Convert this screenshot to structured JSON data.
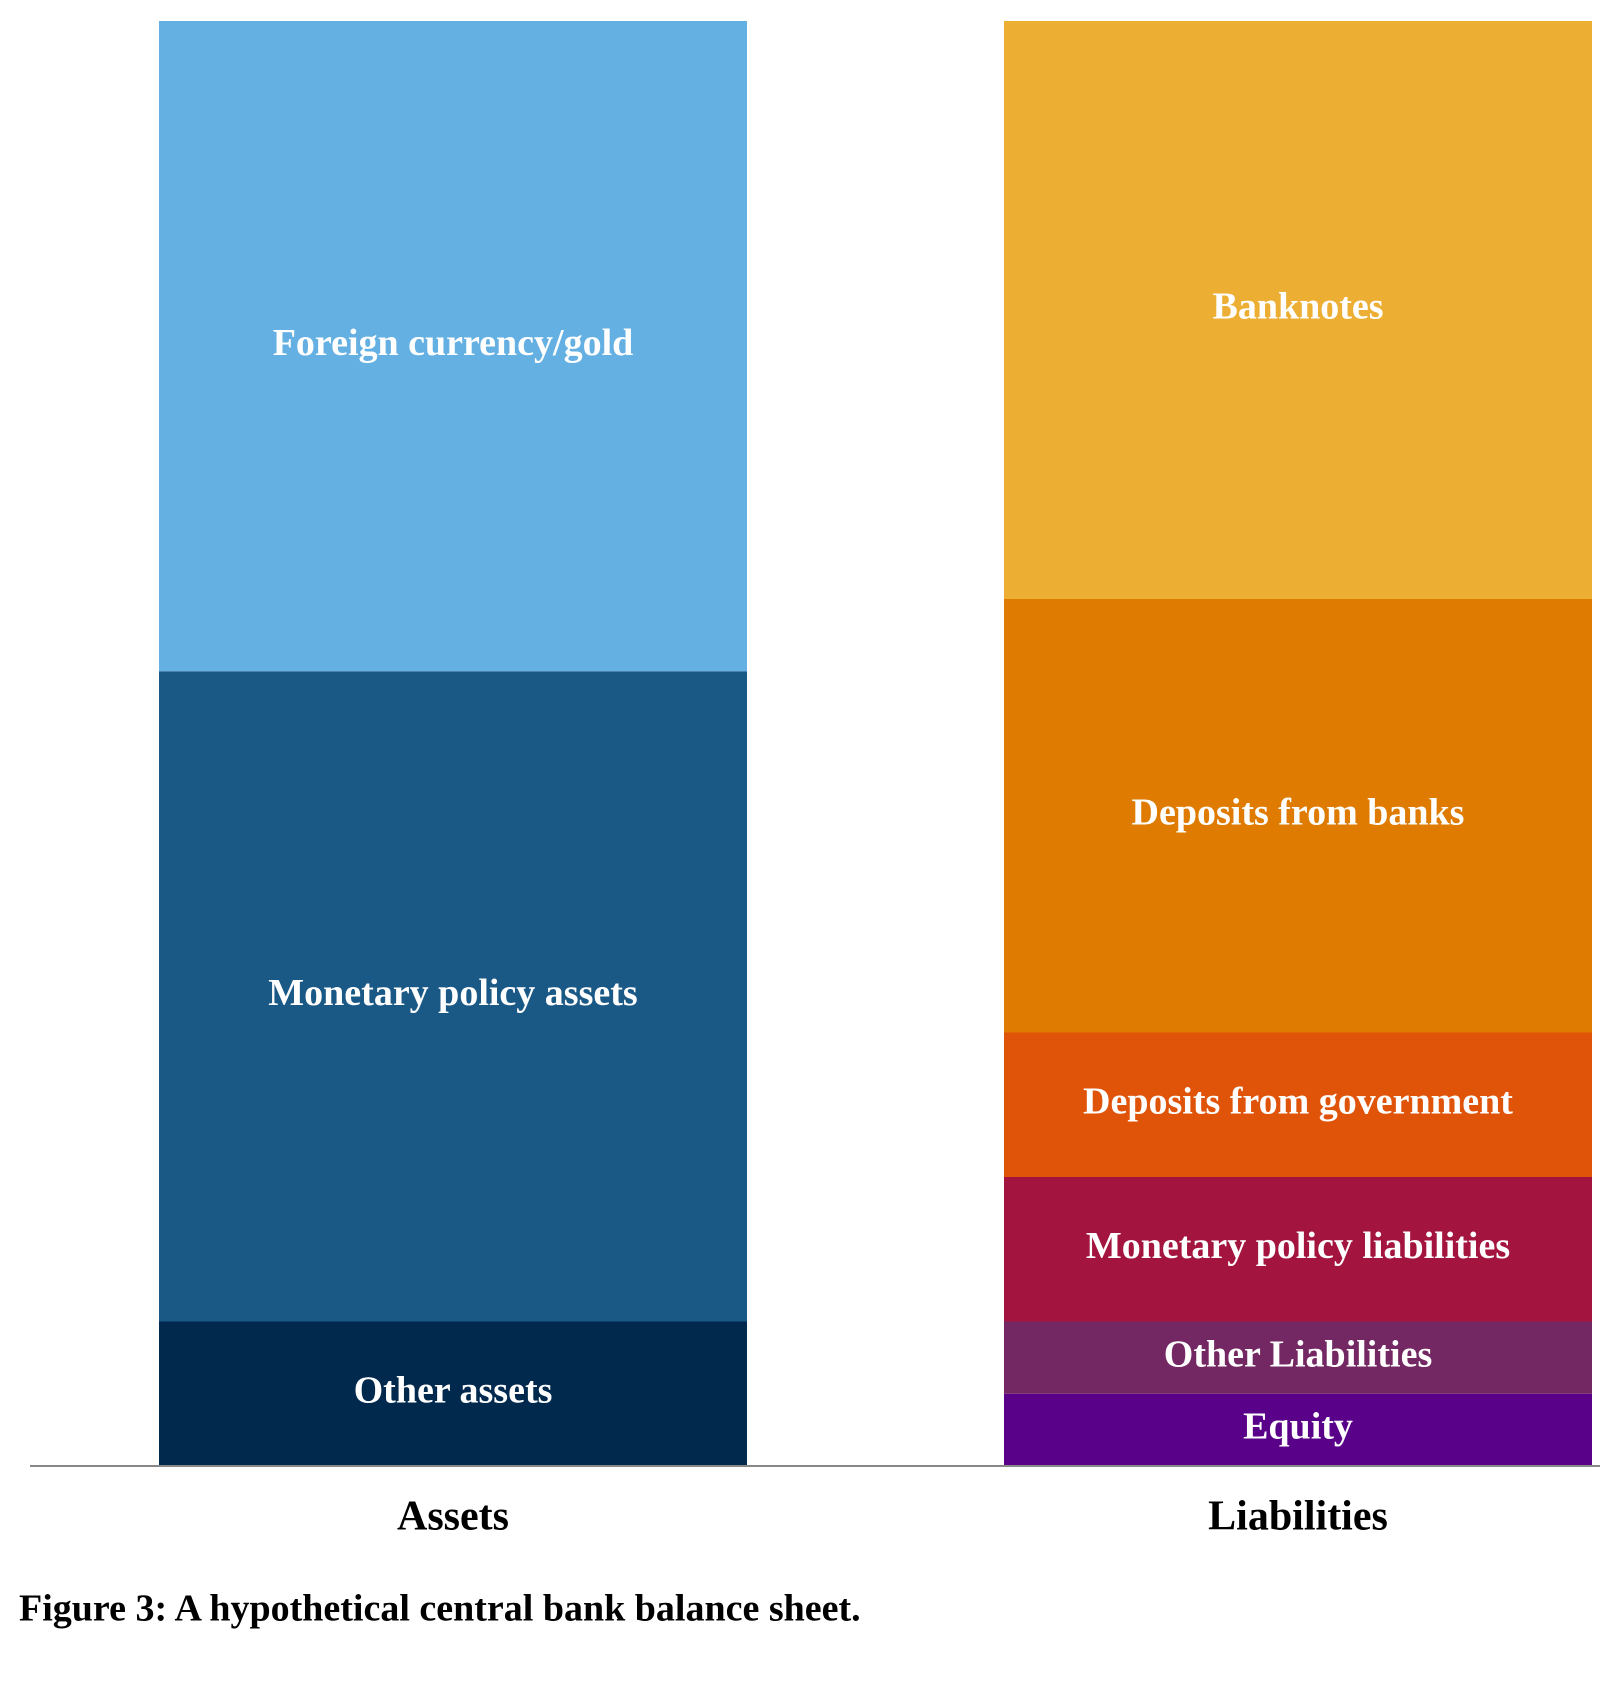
{
  "chart_data": {
    "type": "bar",
    "stacked": true,
    "caption": "Figure 3: A hypothetical central bank balance sheet.",
    "categories": [
      "Assets",
      "Liabilities"
    ],
    "ylim": [
      0,
      100
    ],
    "series": [
      {
        "name": "Other assets",
        "color": "#01294d",
        "values": [
          10,
          null
        ]
      },
      {
        "name": "Monetary policy assets",
        "color": "#1a5886",
        "values": [
          45,
          null
        ]
      },
      {
        "name": "Foreign currency/gold",
        "color": "#65b0e2",
        "values": [
          45,
          null
        ]
      },
      {
        "name": "Equity",
        "color": "#5a0189",
        "values": [
          null,
          5
        ]
      },
      {
        "name": "Other Liabilities",
        "color": "#742863",
        "values": [
          null,
          5
        ]
      },
      {
        "name": "Monetary policy liabilities",
        "color": "#a3143f",
        "values": [
          null,
          10
        ]
      },
      {
        "name": "Deposits from government",
        "color": "#e0540a",
        "values": [
          null,
          10
        ]
      },
      {
        "name": "Deposits from banks",
        "color": "#de7b00",
        "values": [
          null,
          30
        ]
      },
      {
        "name": "Banknotes",
        "color": "#ecae33",
        "values": [
          null,
          40
        ]
      }
    ]
  }
}
